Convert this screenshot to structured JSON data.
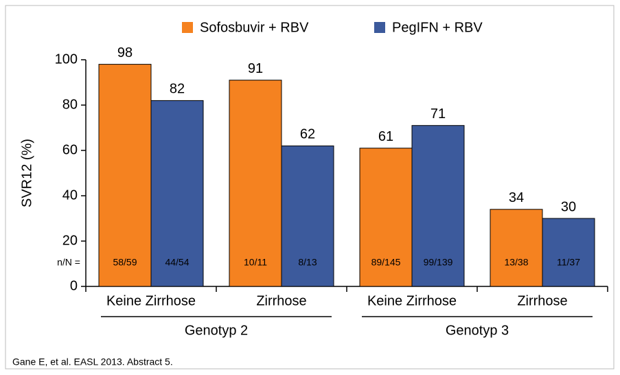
{
  "chart_data": {
    "type": "bar",
    "ylabel": "SVR12 (%)",
    "categories": [
      "Keine Zirrhose",
      "Zirrhose",
      "Keine Zirrhose",
      "Zirrhose"
    ],
    "group_labels": [
      "Genotyp 2",
      "Genotyp 3"
    ],
    "counts_label": "n/N =",
    "series": [
      {
        "name": "Sofosbuvir + RBV",
        "color": "#f58220",
        "values": [
          98,
          91,
          61,
          34
        ],
        "counts": [
          "58/59",
          "10/11",
          "89/145",
          "13/38"
        ]
      },
      {
        "name": "PegIFN + RBV",
        "color": "#3c5a9c",
        "values": [
          82,
          62,
          71,
          30
        ],
        "counts": [
          "44/54",
          "8/13",
          "99/139",
          "11/37"
        ]
      }
    ],
    "ylim": [
      0,
      100
    ],
    "yticks": [
      0,
      20,
      40,
      60,
      80,
      100
    ],
    "legend": "top",
    "footnote": "Gane E, et al. EASL 2013. Abstract 5."
  }
}
